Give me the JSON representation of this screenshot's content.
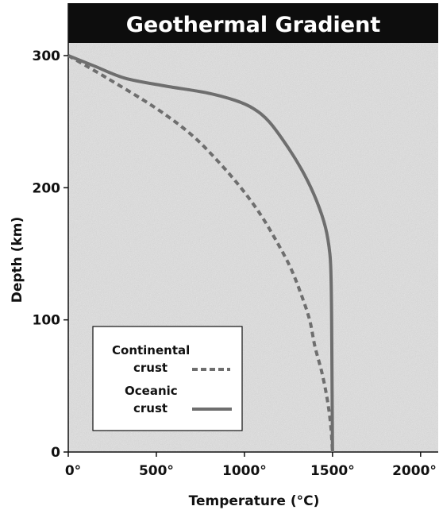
{
  "chart_data": {
    "type": "line",
    "title": "Geothermal Gradient",
    "xlabel": "Temperature (°C)",
    "ylabel": "Depth (km)",
    "xlim": [
      0,
      2100
    ],
    "ylim": [
      0,
      300
    ],
    "x_ticks": [
      "0°",
      "500°",
      "1000°",
      "1500°",
      "2000°"
    ],
    "x_tick_values": [
      0,
      500,
      1000,
      1500,
      2000
    ],
    "y_ticks": [
      "0",
      "100",
      "200",
      "300"
    ],
    "y_tick_values": [
      0,
      100,
      200,
      300
    ],
    "grid": false,
    "legend_position": "bottom-left",
    "series": [
      {
        "name": "Continental crust",
        "style": "dashed",
        "color": "#6e6e6e",
        "x": [
          0,
          220,
          500,
          700,
          850,
          980,
          1090,
          1180,
          1260,
          1320,
          1370,
          1400,
          1440,
          1470,
          1490,
          1500
        ],
        "y": [
          300,
          283,
          260,
          240,
          220,
          200,
          180,
          160,
          140,
          120,
          100,
          80,
          60,
          40,
          20,
          0
        ]
      },
      {
        "name": "Oceanic crust",
        "style": "solid",
        "color": "#6e6e6e",
        "x": [
          0,
          150,
          320,
          550,
          780,
          950,
          1050,
          1140,
          1250,
          1340,
          1410,
          1460,
          1485,
          1492,
          1495,
          1497,
          1499,
          1500
        ],
        "y": [
          300,
          292,
          283,
          277,
          272,
          266,
          260,
          250,
          230,
          210,
          190,
          170,
          150,
          130,
          100,
          60,
          20,
          0
        ]
      }
    ],
    "legend": {
      "entries": [
        {
          "line1": "Continental",
          "line2": "crust"
        },
        {
          "line1": "Oceanic",
          "line2": "crust"
        }
      ]
    }
  }
}
